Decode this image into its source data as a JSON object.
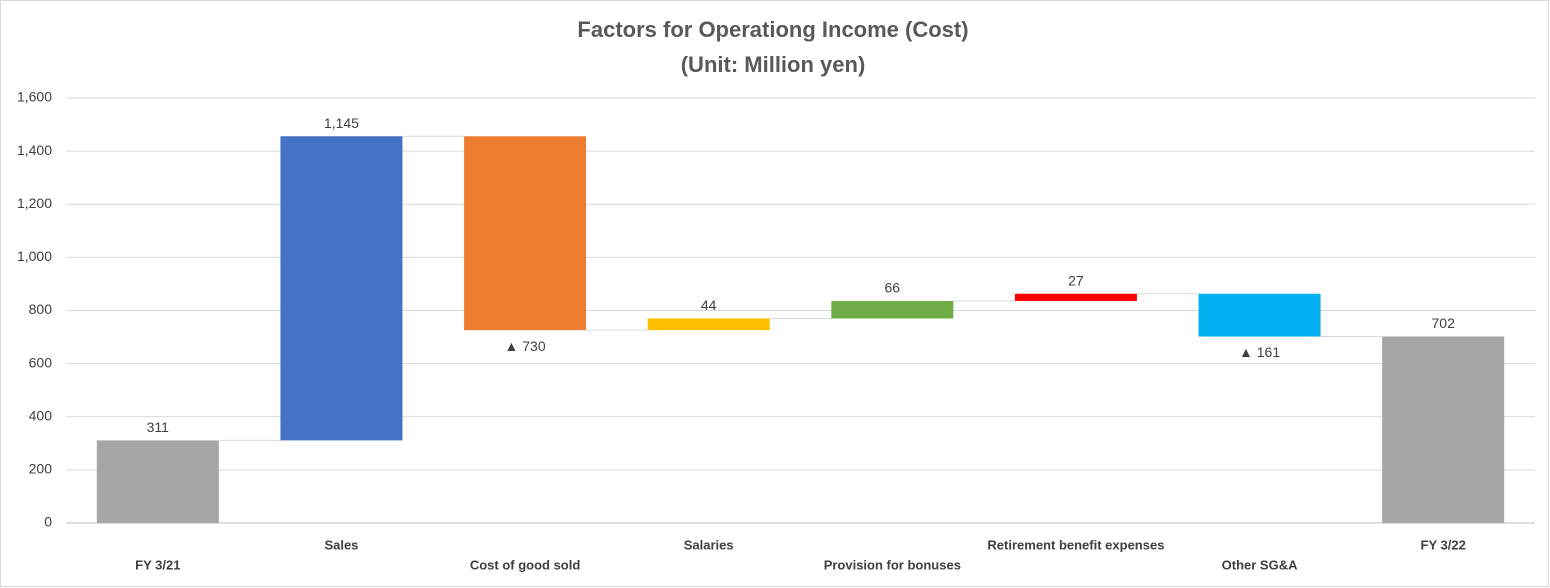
{
  "chart_data": {
    "type": "waterfall",
    "title": "Factors for Operationg Income (Cost)",
    "subtitle": "(Unit: Million yen)",
    "categories": [
      "FY 3/21",
      "Sales",
      "Cost of good sold",
      "Salaries",
      "Provision for bonuses",
      "Retirement benefit expenses",
      "Other SG&A",
      "FY 3/22"
    ],
    "values": [
      311,
      1145,
      -730,
      44,
      66,
      27,
      -161,
      702
    ],
    "value_labels": [
      "311",
      "1,145",
      "▲ 730",
      "44",
      "66",
      "27",
      "▲ 161",
      "702"
    ],
    "measures": [
      "absolute",
      "relative",
      "relative",
      "relative",
      "relative",
      "relative",
      "relative",
      "absolute"
    ],
    "colors": [
      "#a5a5a5",
      "#4472c4",
      "#ed7d31",
      "#ffc000",
      "#70ad47",
      "#ff0000",
      "#00b0f0",
      "#a5a5a5"
    ],
    "ylim": [
      0,
      1600
    ],
    "yticks": [
      0,
      200,
      400,
      600,
      800,
      {
        "value": 1000,
        "label": "1,000"
      },
      {
        "value": 1200,
        "label": "1,200"
      },
      {
        "value": 1400,
        "label": "1,400"
      },
      {
        "value": 1600,
        "label": "1,600"
      }
    ],
    "grid": true
  }
}
